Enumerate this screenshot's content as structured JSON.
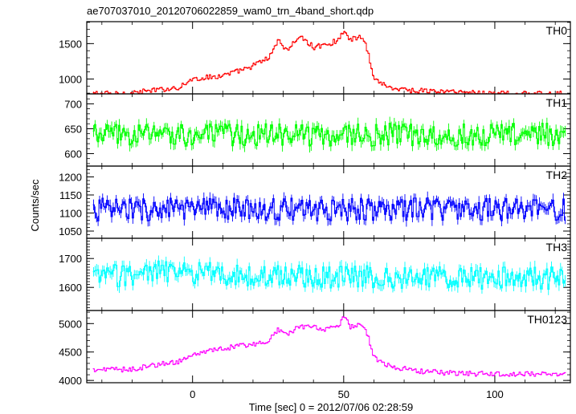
{
  "chart_data": {
    "type": "line",
    "style": "step with error bars",
    "title": "ae707037010_20120706022859_wam0_trn_4band_short.qdp",
    "xlabel": "Time [sec] 0 = 2012/07/06 02:28:59",
    "ylabel": "Counts/sec",
    "xlim": [
      -35,
      125
    ],
    "xticks": [
      0,
      50,
      100
    ],
    "x_start": -33,
    "x_step": 0.5,
    "panels": [
      {
        "name": "TH0",
        "color": "#ff0000",
        "ylim": [
          790,
          1810
        ],
        "yticks": [
          1000,
          1500
        ],
        "knots": [
          [
            -33,
            800
          ],
          [
            -25,
            790
          ],
          [
            -15,
            830
          ],
          [
            -5,
            880
          ],
          [
            0,
            1000
          ],
          [
            10,
            1050
          ],
          [
            18,
            1150
          ],
          [
            25,
            1300
          ],
          [
            28,
            1550
          ],
          [
            31,
            1400
          ],
          [
            35,
            1600
          ],
          [
            40,
            1450
          ],
          [
            45,
            1500
          ],
          [
            48,
            1550
          ],
          [
            50,
            1700
          ],
          [
            52,
            1550
          ],
          [
            55,
            1600
          ],
          [
            57,
            1500
          ],
          [
            60,
            1000
          ],
          [
            65,
            880
          ],
          [
            72,
            840
          ],
          [
            85,
            820
          ],
          [
            100,
            800
          ],
          [
            110,
            790
          ],
          [
            125,
            790
          ]
        ]
      },
      {
        "name": "TH1",
        "color": "#00ff00",
        "ylim": [
          575,
          720
        ],
        "yticks": [
          600,
          650,
          700
        ],
        "knots": [
          [
            -33,
            638
          ],
          [
            125,
            638
          ]
        ]
      },
      {
        "name": "TH2",
        "color": "#0000ff",
        "ylim": [
          1030,
          1230
        ],
        "yticks": [
          1050,
          1100,
          1150,
          1200
        ],
        "knots": [
          [
            -33,
            1110
          ],
          [
            125,
            1110
          ]
        ]
      },
      {
        "name": "TH3",
        "color": "#00ffff",
        "ylim": [
          1520,
          1770
        ],
        "yticks": [
          1600,
          1700
        ],
        "knots": [
          [
            -33,
            1635
          ],
          [
            -10,
            1655
          ],
          [
            20,
            1640
          ],
          [
            125,
            1630
          ]
        ]
      },
      {
        "name": "TH0123",
        "color": "#ff00ff",
        "ylim": [
          3960,
          5230
        ],
        "yticks": [
          4000,
          4500,
          5000
        ],
        "knots": [
          [
            -33,
            4180
          ],
          [
            -20,
            4200
          ],
          [
            -10,
            4300
          ],
          [
            -5,
            4330
          ],
          [
            0,
            4450
          ],
          [
            10,
            4560
          ],
          [
            20,
            4640
          ],
          [
            25,
            4700
          ],
          [
            28,
            4900
          ],
          [
            31,
            4780
          ],
          [
            35,
            4950
          ],
          [
            45,
            4900
          ],
          [
            48,
            4950
          ],
          [
            50,
            5150
          ],
          [
            52,
            4950
          ],
          [
            55,
            5000
          ],
          [
            57,
            4900
          ],
          [
            60,
            4400
          ],
          [
            65,
            4250
          ],
          [
            75,
            4160
          ],
          [
            90,
            4120
          ],
          [
            110,
            4110
          ],
          [
            125,
            4110
          ]
        ]
      }
    ]
  }
}
